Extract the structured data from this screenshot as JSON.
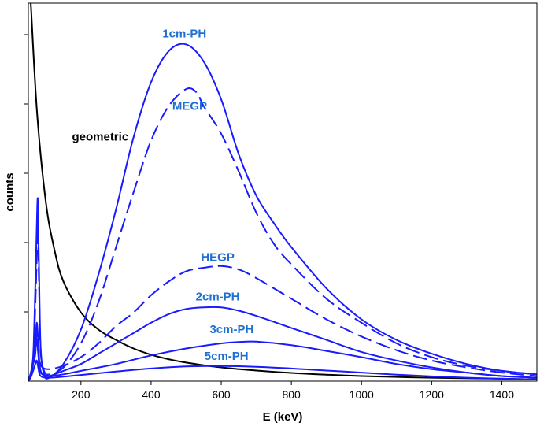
{
  "chart_data": {
    "type": "line",
    "title": "",
    "xlabel": "E (keV)",
    "ylabel": "counts",
    "xlim": [
      50,
      1500
    ],
    "ylim": [
      0,
      1.1
    ],
    "xticks": [
      200,
      400,
      600,
      800,
      1000,
      1200,
      1400
    ],
    "grid": false,
    "legend": "none",
    "colors": {
      "blue": "#1a1aff",
      "label_blue": "#1f6fd1",
      "black": "#000000"
    },
    "series": [
      {
        "name": "geometric",
        "label": "geometric",
        "color": "#000000",
        "dashed": false,
        "x": [
          57,
          75,
          100,
          125,
          150,
          200,
          250,
          300,
          350,
          400,
          450,
          500,
          600,
          700,
          800,
          900,
          1000,
          1200,
          1400,
          1500
        ],
        "y": [
          1.1,
          0.78,
          0.52,
          0.38,
          0.29,
          0.2,
          0.15,
          0.12,
          0.095,
          0.077,
          0.064,
          0.054,
          0.04,
          0.031,
          0.024,
          0.019,
          0.015,
          0.01,
          0.007,
          0.005
        ]
      },
      {
        "name": "1cm-PH",
        "label": "1cm-PH",
        "color": "#1a1aff",
        "dashed": false,
        "x": [
          50,
          60,
          65,
          70,
          74,
          77,
          80,
          85,
          95,
          110,
          150,
          200,
          250,
          300,
          350,
          400,
          450,
          500,
          550,
          600,
          650,
          700,
          750,
          800,
          900,
          1000,
          1100,
          1200,
          1300,
          1400,
          1500
        ],
        "y": [
          0.0,
          0.03,
          0.1,
          0.28,
          0.45,
          0.53,
          0.35,
          0.1,
          0.02,
          0.01,
          0.05,
          0.15,
          0.31,
          0.5,
          0.71,
          0.87,
          0.96,
          0.98,
          0.93,
          0.82,
          0.66,
          0.54,
          0.46,
          0.39,
          0.27,
          0.18,
          0.12,
          0.08,
          0.05,
          0.03,
          0.02
        ]
      },
      {
        "name": "MEGP",
        "label": "MEGP",
        "color": "#1a1aff",
        "dashed": true,
        "x": [
          50,
          60,
          65,
          70,
          74,
          77,
          80,
          85,
          95,
          110,
          150,
          200,
          250,
          300,
          350,
          400,
          450,
          500,
          530,
          550,
          600,
          650,
          700,
          750,
          800,
          900,
          1000,
          1100,
          1200,
          1300,
          1400,
          1500
        ],
        "y": [
          0.0,
          0.03,
          0.08,
          0.22,
          0.36,
          0.45,
          0.3,
          0.09,
          0.03,
          0.02,
          0.04,
          0.11,
          0.23,
          0.39,
          0.55,
          0.7,
          0.8,
          0.85,
          0.84,
          0.8,
          0.72,
          0.61,
          0.49,
          0.4,
          0.34,
          0.24,
          0.17,
          0.11,
          0.07,
          0.045,
          0.03,
          0.02
        ]
      },
      {
        "name": "HEGP",
        "label": "HEGP",
        "color": "#1a1aff",
        "dashed": true,
        "x": [
          50,
          60,
          70,
          74,
          78,
          82,
          90,
          110,
          150,
          200,
          250,
          300,
          350,
          400,
          450,
          500,
          550,
          600,
          650,
          700,
          800,
          900,
          1000,
          1100,
          1200,
          1300,
          1400,
          1500
        ],
        "y": [
          0.0,
          0.02,
          0.08,
          0.14,
          0.11,
          0.06,
          0.04,
          0.035,
          0.045,
          0.07,
          0.11,
          0.16,
          0.2,
          0.25,
          0.29,
          0.32,
          0.33,
          0.335,
          0.325,
          0.3,
          0.24,
          0.18,
          0.13,
          0.09,
          0.06,
          0.04,
          0.025,
          0.015
        ]
      },
      {
        "name": "2cm-PH",
        "label": "2cm-PH",
        "color": "#1a1aff",
        "dashed": false,
        "x": [
          50,
          60,
          70,
          74,
          78,
          82,
          90,
          110,
          150,
          200,
          250,
          300,
          350,
          400,
          450,
          500,
          550,
          600,
          650,
          700,
          800,
          900,
          1000,
          1100,
          1200,
          1300,
          1400,
          1500
        ],
        "y": [
          0.0,
          0.04,
          0.12,
          0.17,
          0.12,
          0.05,
          0.02,
          0.015,
          0.03,
          0.05,
          0.08,
          0.11,
          0.14,
          0.17,
          0.195,
          0.21,
          0.215,
          0.215,
          0.205,
          0.19,
          0.155,
          0.12,
          0.085,
          0.06,
          0.04,
          0.025,
          0.015,
          0.01
        ]
      },
      {
        "name": "3cm-PH",
        "label": "3cm-PH",
        "color": "#1a1aff",
        "dashed": false,
        "x": [
          50,
          60,
          70,
          74,
          78,
          82,
          90,
          110,
          150,
          200,
          300,
          400,
          500,
          600,
          650,
          700,
          800,
          900,
          1000,
          1100,
          1200,
          1300,
          1400,
          1500
        ],
        "y": [
          0.0,
          0.03,
          0.09,
          0.12,
          0.08,
          0.035,
          0.02,
          0.015,
          0.02,
          0.03,
          0.05,
          0.075,
          0.095,
          0.11,
          0.114,
          0.115,
          0.105,
          0.088,
          0.07,
          0.05,
          0.035,
          0.025,
          0.015,
          0.01
        ]
      },
      {
        "name": "5cm-PH",
        "label": "5cm-PH",
        "color": "#1a1aff",
        "dashed": false,
        "x": [
          50,
          60,
          70,
          74,
          78,
          82,
          90,
          110,
          150,
          200,
          300,
          400,
          500,
          600,
          700,
          800,
          900,
          1000,
          1100,
          1200,
          1300,
          1400,
          1500
        ],
        "y": [
          0.0,
          0.02,
          0.05,
          0.06,
          0.04,
          0.02,
          0.012,
          0.01,
          0.013,
          0.018,
          0.028,
          0.037,
          0.043,
          0.044,
          0.042,
          0.037,
          0.031,
          0.025,
          0.019,
          0.014,
          0.01,
          0.007,
          0.005
        ]
      }
    ],
    "annotations": [
      {
        "text": "1cm-PH",
        "x": 495,
        "y": 1.0,
        "color": "#1f6fd1"
      },
      {
        "text": "MEGP",
        "x": 510,
        "y": 0.79,
        "color": "#1f6fd1"
      },
      {
        "text": "geometric",
        "x": 255,
        "y": 0.7,
        "color": "#000000"
      },
      {
        "text": "HEGP",
        "x": 590,
        "y": 0.35,
        "color": "#1f6fd1"
      },
      {
        "text": "2cm-PH",
        "x": 590,
        "y": 0.235,
        "color": "#1f6fd1"
      },
      {
        "text": "3cm-PH",
        "x": 630,
        "y": 0.14,
        "color": "#1f6fd1"
      },
      {
        "text": "5cm-PH",
        "x": 615,
        "y": 0.062,
        "color": "#1f6fd1"
      }
    ]
  }
}
